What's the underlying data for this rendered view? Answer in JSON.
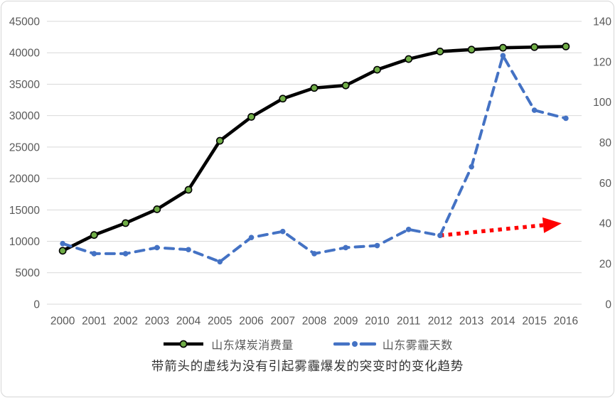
{
  "caption": {
    "text": "带箭头的虚线为没有引起雾霾爆发的突变时的变化趋势"
  },
  "legend": {
    "items": [
      {
        "label": "山东煤炭消费量"
      },
      {
        "label": "山东雾霾天数"
      }
    ]
  },
  "chart_data": {
    "type": "line",
    "title": "",
    "x": [
      2000,
      2001,
      2002,
      2003,
      2004,
      2005,
      2006,
      2007,
      2008,
      2009,
      2010,
      2011,
      2012,
      2013,
      2014,
      2015,
      2016
    ],
    "x_labels": [
      "2000",
      "2001",
      "2002",
      "2003",
      "2004",
      "2005",
      "2006",
      "2007",
      "2008",
      "2009",
      "2010",
      "2011",
      "2012",
      "2013",
      "2014",
      "2015",
      "2016"
    ],
    "series": [
      {
        "name": "山东煤炭消费量",
        "axis": "left",
        "style": "solid",
        "line_color": "#000000",
        "marker": "circle",
        "marker_fill": "#70AD47",
        "marker_border": "#000000",
        "values": [
          8500,
          11000,
          12900,
          15100,
          18200,
          26000,
          29800,
          32700,
          34400,
          34800,
          37300,
          39000,
          40200,
          40500,
          40800,
          40900,
          41000
        ]
      },
      {
        "name": "山东雾霾天数",
        "axis": "right",
        "style": "dashed",
        "line_color": "#4472C4",
        "marker": "dot",
        "marker_fill": "#4472C4",
        "values": [
          30,
          25,
          25,
          28,
          27,
          21,
          33,
          36,
          25,
          28,
          29,
          37,
          34,
          68,
          123,
          96,
          92
        ]
      }
    ],
    "annotation_arrow": {
      "description": "红色带箭头的虚线：没有引起雾霾爆发的突变时的变化趋势",
      "color": "#FF0000",
      "style": "dotted",
      "axis": "right",
      "from": {
        "year": 2012,
        "value": 34
      },
      "to": {
        "year": 2016,
        "value": 40
      }
    },
    "left_axis": {
      "min": 0,
      "max": 45000,
      "step": 5000,
      "tick_labels": [
        "0",
        "5000",
        "10000",
        "15000",
        "20000",
        "25000",
        "30000",
        "35000",
        "40000",
        "45000"
      ]
    },
    "right_axis": {
      "min": 0,
      "max": 140,
      "step": 20,
      "tick_labels": [
        "0",
        "20",
        "40",
        "60",
        "80",
        "100",
        "120",
        "140"
      ]
    },
    "grid": true,
    "grid_color": "#D9D9D9",
    "axis_text_color": "#595959",
    "legend_position": "bottom"
  }
}
